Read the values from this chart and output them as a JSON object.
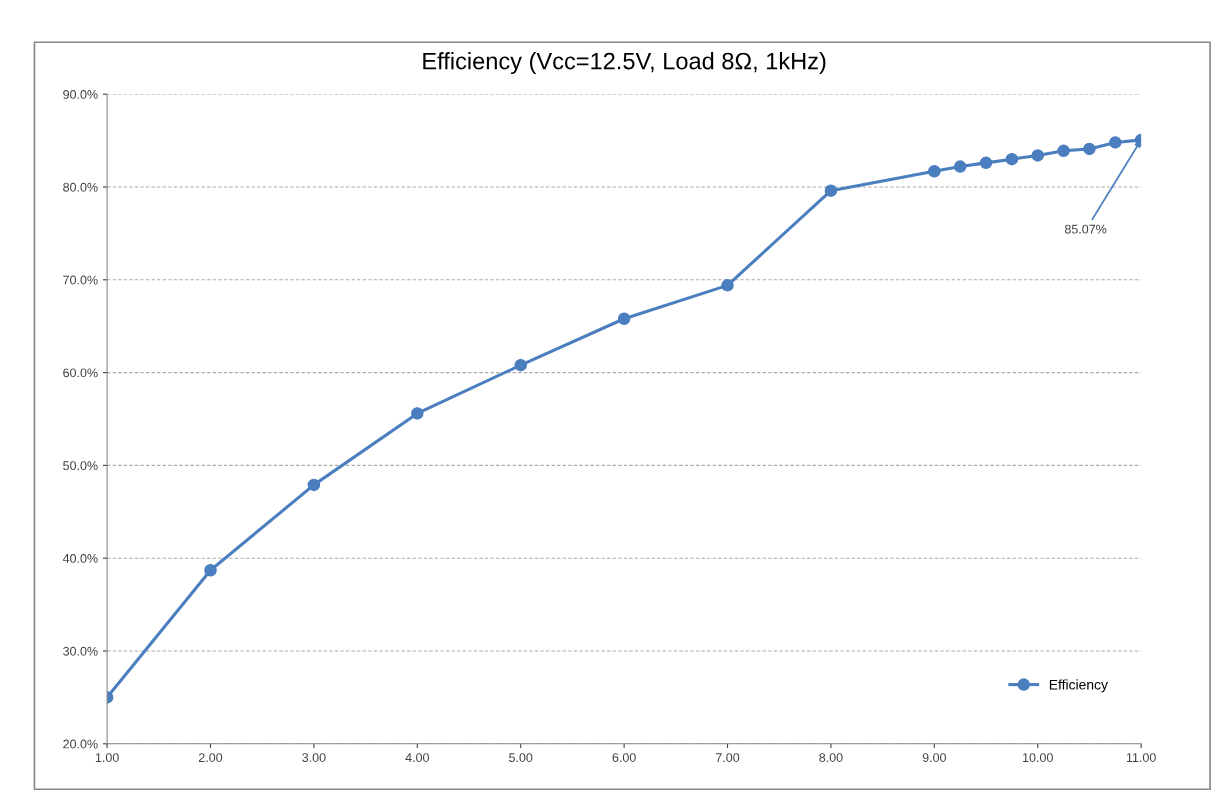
{
  "chart_data": {
    "type": "line",
    "title": "Efficiency (Vcc=12.5V, Load 8Ω, 1kHz)",
    "x": [
      1,
      2,
      3,
      4,
      5,
      6,
      7,
      8,
      9,
      9.25,
      9.5,
      9.75,
      10,
      10.25,
      10.5,
      10.75,
      11
    ],
    "series": [
      {
        "name": "Efficiency",
        "color": "#4a7ebf",
        "values": [
          25.0,
          38.7,
          47.9,
          55.6,
          60.8,
          65.8,
          69.4,
          79.6,
          81.7,
          82.2,
          82.6,
          83.0,
          83.4,
          83.9,
          84.1,
          84.8,
          85.07
        ]
      }
    ],
    "xlim": [
      1,
      11
    ],
    "xticks": [
      {
        "value": 1,
        "label": "1.00"
      },
      {
        "value": 2,
        "label": "2.00"
      },
      {
        "value": 3,
        "label": "3.00"
      },
      {
        "value": 4,
        "label": "4.00"
      },
      {
        "value": 5,
        "label": "5.00"
      },
      {
        "value": 6,
        "label": "6.00"
      },
      {
        "value": 7,
        "label": "7.00"
      },
      {
        "value": 8,
        "label": "8.00"
      },
      {
        "value": 9,
        "label": "9.00"
      },
      {
        "value": 10,
        "label": "10.00"
      },
      {
        "value": 11,
        "label": "11.00"
      }
    ],
    "ylim": [
      20,
      90
    ],
    "yticks": [
      {
        "value": 20,
        "label": "20.0%"
      },
      {
        "value": 30,
        "label": "30.0%"
      },
      {
        "value": 40,
        "label": "40.0%"
      },
      {
        "value": 50,
        "label": "50.0%"
      },
      {
        "value": 60,
        "label": "60.0%"
      },
      {
        "value": 70,
        "label": "70.0%"
      },
      {
        "value": 80,
        "label": "80.0%"
      },
      {
        "value": 90,
        "label": "90.0%"
      }
    ],
    "annotations": [
      {
        "text": "85.07%",
        "x": 11,
        "y": 85.07
      }
    ],
    "grid": "y",
    "legend": "bottom right",
    "marker": "circle",
    "line_style": "solid"
  }
}
